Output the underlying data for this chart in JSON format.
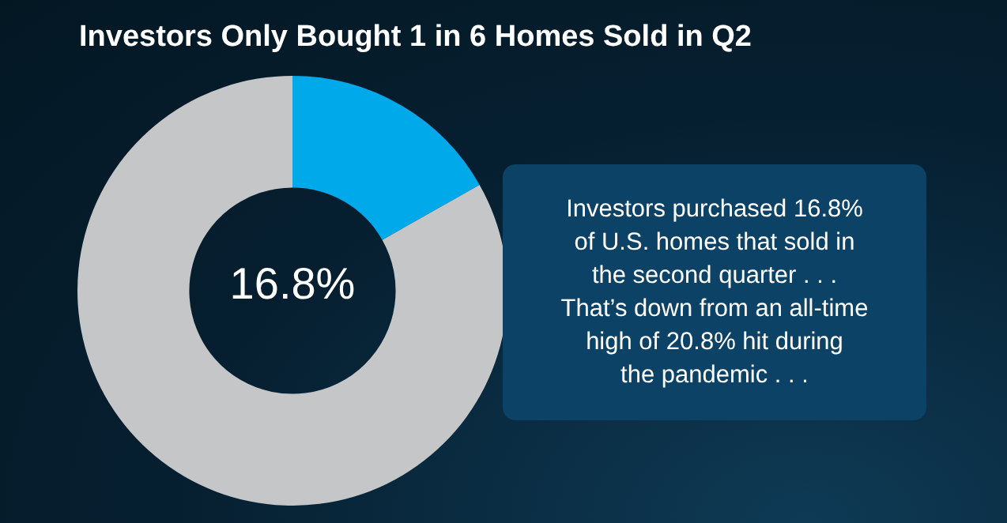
{
  "chart_data": {
    "type": "donut",
    "title": "Investors Only Bought 1 in 6 Homes Sold in Q2",
    "categories": [
      null,
      null
    ],
    "values": [
      16.8,
      83.2
    ],
    "colors": [
      "#00a9ea",
      "#c4c6c7"
    ],
    "legend": false,
    "annotations": [
      "16.8%",
      "Investors purchased 16.8%\nof U.S. homes that sold in\nthe second quarter . . .\nThat’s down from an all-time\nhigh of 20.8% hit during\nthe pandemic . . ."
    ]
  }
}
